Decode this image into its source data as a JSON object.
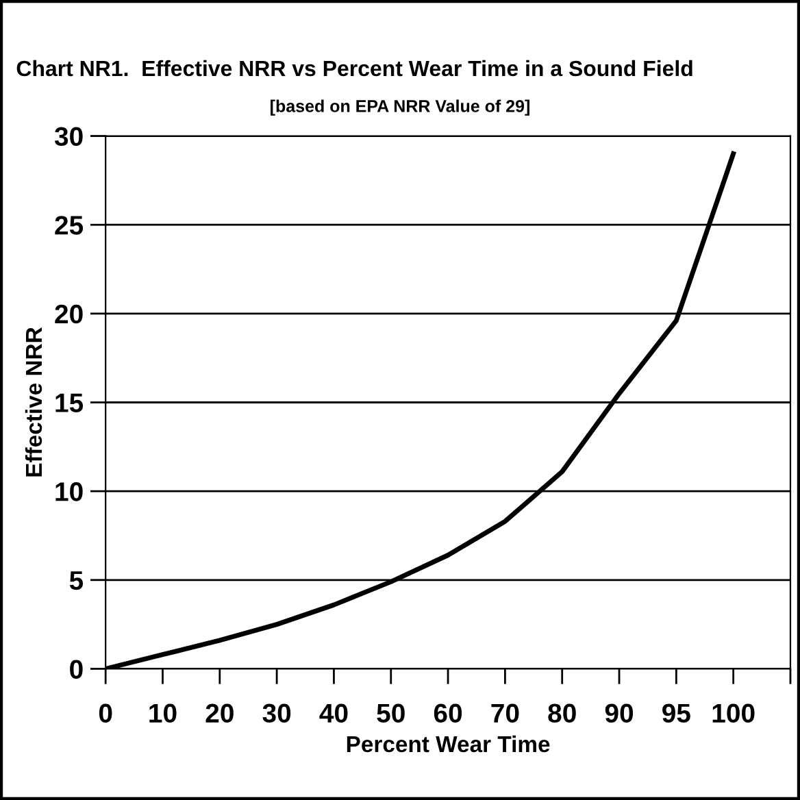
{
  "chart_data": {
    "type": "line",
    "title": "Chart NR1.  Effective NRR vs Percent Wear Time in a Sound Field",
    "subtitle": "[based on EPA NRR Value of 29]",
    "xlabel": "Percent Wear Time",
    "ylabel": "Effective NRR",
    "categories": [
      "0",
      "10",
      "20",
      "30",
      "40",
      "50",
      "60",
      "70",
      "80",
      "90",
      "95",
      "100",
      null
    ],
    "series": [
      {
        "color": "#000000",
        "values": [
          0,
          0.8,
          1.6,
          2.5,
          3.6,
          4.9,
          6.4,
          8.3,
          11.1,
          15.5,
          19.6,
          29,
          null
        ]
      }
    ],
    "ylim": [
      0,
      30
    ],
    "yticks": [
      0,
      5,
      10,
      15,
      20,
      25,
      30
    ],
    "grid": "y",
    "legend": false,
    "marker": "none",
    "line_style": "solid"
  }
}
